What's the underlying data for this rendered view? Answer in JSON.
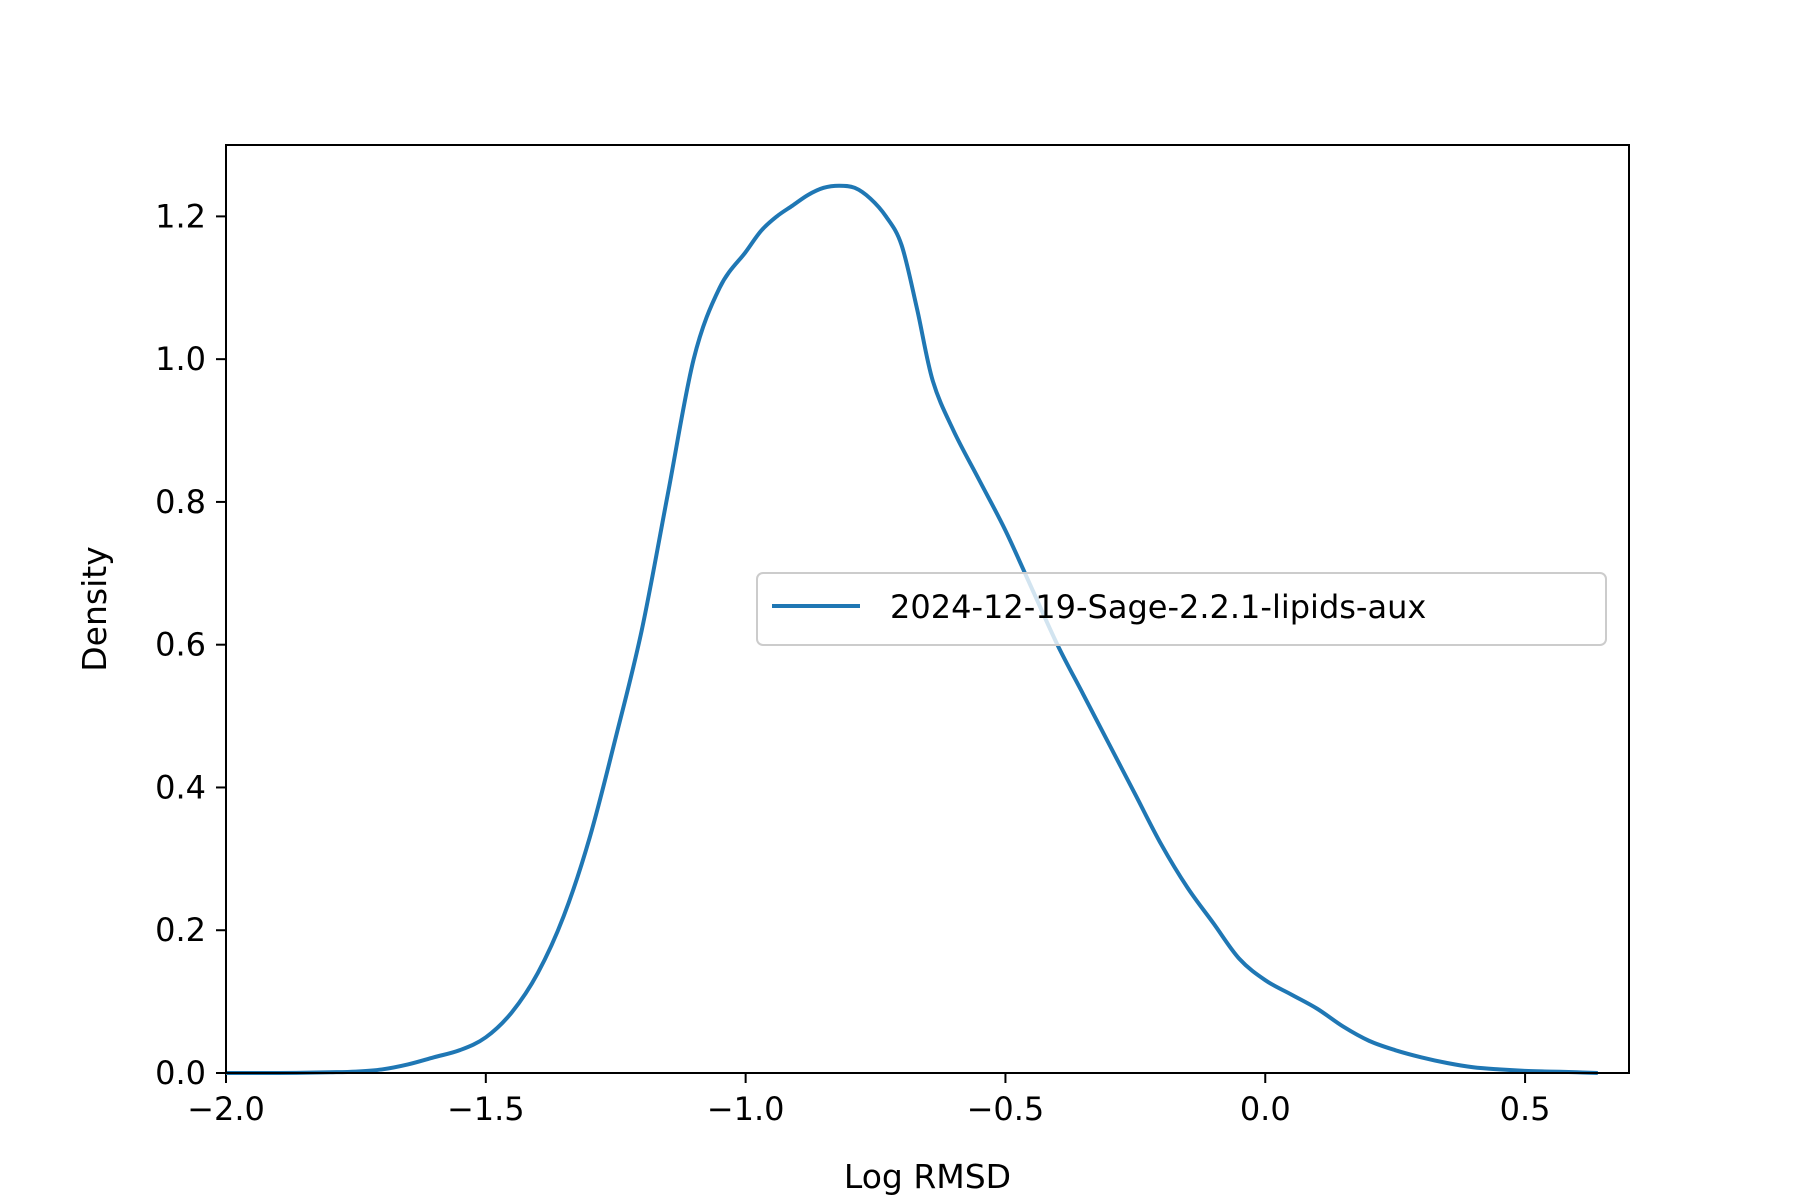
{
  "chart_data": {
    "type": "line",
    "title": "",
    "xlabel": "Log RMSD",
    "ylabel": "Density",
    "xlim": [
      -2.0,
      0.7
    ],
    "ylim": [
      0.0,
      1.3
    ],
    "x_ticks": [
      -2.0,
      -1.5,
      -1.0,
      -0.5,
      0.0,
      0.5
    ],
    "x_tick_labels": [
      "−2.0",
      "−1.5",
      "−1.0",
      "−0.5",
      "0.0",
      "0.5"
    ],
    "y_ticks": [
      0.0,
      0.2,
      0.4,
      0.6,
      0.8,
      1.0,
      1.2
    ],
    "y_tick_labels": [
      "0.0",
      "0.2",
      "0.4",
      "0.6",
      "0.8",
      "1.0",
      "1.2"
    ],
    "grid": false,
    "legend_position": "center-right",
    "series": [
      {
        "name": "2024-12-19-Sage-2.2.1-lipids-aux",
        "color": "#1f77b4",
        "x": [
          -2.0,
          -1.9,
          -1.8,
          -1.75,
          -1.7,
          -1.65,
          -1.6,
          -1.55,
          -1.5,
          -1.45,
          -1.4,
          -1.35,
          -1.3,
          -1.25,
          -1.2,
          -1.15,
          -1.1,
          -1.05,
          -1.0,
          -0.97,
          -0.94,
          -0.91,
          -0.88,
          -0.85,
          -0.82,
          -0.79,
          -0.76,
          -0.73,
          -0.7,
          -0.67,
          -0.64,
          -0.6,
          -0.55,
          -0.5,
          -0.45,
          -0.4,
          -0.35,
          -0.3,
          -0.25,
          -0.2,
          -0.15,
          -0.1,
          -0.05,
          0.0,
          0.05,
          0.1,
          0.15,
          0.2,
          0.25,
          0.3,
          0.35,
          0.4,
          0.45,
          0.5,
          0.55,
          0.6,
          0.64
        ],
        "y": [
          0.0,
          0.0,
          0.001,
          0.002,
          0.005,
          0.012,
          0.022,
          0.032,
          0.05,
          0.085,
          0.14,
          0.22,
          0.33,
          0.47,
          0.62,
          0.81,
          1.0,
          1.1,
          1.15,
          1.18,
          1.2,
          1.215,
          1.23,
          1.24,
          1.243,
          1.24,
          1.225,
          1.2,
          1.16,
          1.07,
          0.97,
          0.9,
          0.83,
          0.76,
          0.68,
          0.6,
          0.53,
          0.46,
          0.39,
          0.32,
          0.26,
          0.21,
          0.16,
          0.13,
          0.11,
          0.09,
          0.065,
          0.045,
          0.032,
          0.022,
          0.014,
          0.008,
          0.005,
          0.003,
          0.002,
          0.001,
          0.0
        ]
      }
    ]
  }
}
